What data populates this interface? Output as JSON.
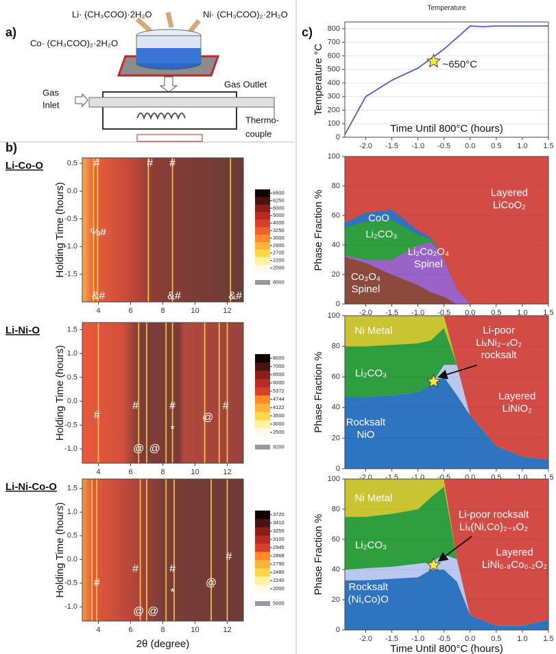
{
  "panel_labels": [
    "a)",
    "b)",
    "c)"
  ],
  "schematic": {
    "precursors": [
      "Li· (CH₃COO)·2H₂O",
      "Ni· (CH₃COO)₂·2H₂O",
      "Co· (CH₃COO)₂·2H₂O"
    ],
    "gas_inlet": [
      "Gas",
      "Inlet"
    ],
    "gas_outlet": "Gas Outlet",
    "thermocouple": [
      "Thermo-",
      "couple"
    ]
  },
  "chart_data": [
    {
      "type": "line",
      "title": "Temperature",
      "ylabel": "Temperature °C",
      "xlabel": "Time Until 800°C (hours)",
      "x": [
        -2.4,
        -2.0,
        -1.5,
        -1.0,
        -0.5,
        0,
        0.25,
        0.5,
        1.0,
        1.5
      ],
      "values": [
        20,
        300,
        420,
        510,
        650,
        820,
        815,
        820,
        820,
        820
      ],
      "color": "#4a5bd6",
      "xlim": [
        -2.4,
        1.5
      ],
      "ylim": [
        0,
        850
      ],
      "xticks": [
        {
          "value": -2,
          "label": "-2.0"
        },
        -1.5,
        {
          "value": -1,
          "label": "-1.0"
        },
        -0.5,
        {
          "value": 0,
          "label": "0.0"
        },
        0.5,
        {
          "value": 1,
          "label": "1.0"
        },
        1.5
      ],
      "yticks": [
        0,
        100,
        200,
        300,
        400,
        500,
        600,
        700,
        800
      ],
      "annotation": {
        "text": "~650°C",
        "x": -0.7,
        "y": 560
      }
    },
    {
      "type": "heatmap",
      "title": "Li-Co-O",
      "ylabel": "Holding Time (hours)",
      "xlim": [
        3,
        13
      ],
      "ylim": [
        -2,
        0.6
      ],
      "xticks": [
        4,
        6,
        8,
        10,
        12
      ],
      "yticks": [
        -1.5,
        {
          "value": -1,
          "label": "-1.0"
        },
        -0.5,
        {
          "value": 0,
          "label": "0.0"
        },
        0.5
      ],
      "peaks": [
        3.7,
        3.95,
        7.1,
        8.6,
        12.2
      ],
      "colorbar": [
        2000,
        2200,
        2700,
        2900,
        3000,
        3250,
        4000,
        5000,
        6000,
        6250,
        6500
      ],
      "colorbar_overflow": 8000,
      "annotations": [
        {
          "text": "#",
          "x": 3.9,
          "y": 0.5
        },
        {
          "text": "#",
          "x": 7.2,
          "y": 0.5
        },
        {
          "text": "#",
          "x": 8.6,
          "y": 0.5
        },
        {
          "text": "%#",
          "x": 4.0,
          "y": -0.75
        },
        {
          "text": "&#",
          "x": 4.0,
          "y": -1.9
        },
        {
          "text": "&#",
          "x": 8.7,
          "y": -1.9
        },
        {
          "text": "&#",
          "x": 12.5,
          "y": -1.9
        }
      ]
    },
    {
      "type": "heatmap",
      "title": "Li-Ni-O",
      "ylabel": "Holding Time (hours)",
      "xlim": [
        3,
        13
      ],
      "ylim": [
        -1.3,
        1.65
      ],
      "xticks": [
        4,
        6,
        8,
        10,
        12
      ],
      "yticks": [
        {
          "value": -1,
          "label": "-1.0"
        },
        -0.5,
        {
          "value": 0,
          "label": "0.0"
        },
        0.5,
        {
          "value": 1,
          "label": "1.0"
        },
        1.5
      ],
      "peaks": [
        4.0,
        6.5,
        7.0,
        8.2,
        8.6,
        10.6,
        11.5,
        12.0
      ],
      "colorbar": [
        2500,
        3000,
        3500,
        4122,
        4744,
        5372,
        6000,
        6500,
        7000,
        8000
      ],
      "colorbar_overflow": 9200,
      "annotations": [
        {
          "text": "#",
          "x": 3.9,
          "y": -0.3
        },
        {
          "text": "#",
          "x": 6.3,
          "y": -0.1
        },
        {
          "text": "#",
          "x": 8.6,
          "y": -0.1
        },
        {
          "text": "#",
          "x": 11.9,
          "y": -0.1
        },
        {
          "text": "*",
          "x": 8.6,
          "y": -0.6
        },
        {
          "text": "@",
          "x": 6.5,
          "y": -1.0
        },
        {
          "text": "@",
          "x": 7.5,
          "y": -1.0
        },
        {
          "text": "@",
          "x": 10.8,
          "y": -0.35
        }
      ]
    },
    {
      "type": "heatmap",
      "title": "Li-Ni-Co-O",
      "ylabel": "Holding Time (hours)",
      "xlabel": "2θ (degree)",
      "xlim": [
        3,
        13
      ],
      "ylim": [
        -1.3,
        1.7
      ],
      "xticks": [
        4,
        6,
        8,
        10,
        12
      ],
      "yticks": [
        {
          "value": -1,
          "label": "-1.0"
        },
        -0.5,
        {
          "value": 0,
          "label": "0.0"
        },
        0.5,
        {
          "value": 1,
          "label": "1.0"
        },
        1.5
      ],
      "peaks": [
        3.6,
        3.9,
        6.6,
        7.0,
        8.2,
        8.7,
        11.0,
        12.0
      ],
      "colorbar": [
        2000,
        2240,
        2480,
        2790,
        2868,
        2945,
        3100,
        3255,
        3410,
        3720
      ],
      "colorbar_overflow": 5000,
      "annotations": [
        {
          "text": "#",
          "x": 3.9,
          "y": -0.5
        },
        {
          "text": "#",
          "x": 6.3,
          "y": -0.2
        },
        {
          "text": "#",
          "x": 8.6,
          "y": -0.2
        },
        {
          "text": "#",
          "x": 12.1,
          "y": 0.05
        },
        {
          "text": "*",
          "x": 8.6,
          "y": -0.7
        },
        {
          "text": "@",
          "x": 6.5,
          "y": -1.1
        },
        {
          "text": "@",
          "x": 7.4,
          "y": -1.1
        },
        {
          "text": "@",
          "x": 11.0,
          "y": -0.5
        }
      ]
    },
    {
      "type": "area",
      "ylabel": "Phase Fraction %",
      "x": [
        -2.4,
        -2.0,
        -1.5,
        -1.0,
        -0.75,
        -0.5,
        -0.25,
        0,
        0.5,
        1.0,
        1.5
      ],
      "xlim": [
        -2.4,
        1.5
      ],
      "ylim": [
        0,
        100
      ],
      "xticks": [
        {
          "value": -2,
          "label": "-2.0"
        },
        -1.5,
        {
          "value": -1,
          "label": "-1.0"
        },
        -0.5,
        {
          "value": 0,
          "label": "0.0"
        },
        0.5,
        {
          "value": 1,
          "label": "1.0"
        },
        1.5
      ],
      "yticks": [
        0,
        20,
        40,
        60,
        80,
        100
      ],
      "series": [
        {
          "name": [
            "Co₃O₄",
            "Spinel"
          ],
          "color": "#8b4a3c",
          "values": [
            32,
            28,
            20,
            13,
            8,
            5,
            0,
            0,
            0,
            0,
            0
          ],
          "label_at": {
            "x": -2.0,
            "y": 14
          }
        },
        {
          "name": [
            "Li₂Co₂O₄",
            "Spinel"
          ],
          "color": "#9a63c8",
          "values": [
            1,
            2,
            10,
            27,
            34,
            25,
            10,
            0,
            0,
            0,
            0
          ],
          "label_at": {
            "x": -0.8,
            "y": 31
          }
        },
        {
          "name": [
            "Li₂CO₃"
          ],
          "color": "#2e9e3e",
          "values": [
            19,
            26,
            27,
            7,
            2,
            0,
            0,
            0,
            0,
            0,
            0
          ],
          "label_at": {
            "x": -1.7,
            "y": 47
          }
        },
        {
          "name": [
            "CoO"
          ],
          "color": "#2f74c0",
          "values": [
            3,
            6,
            7,
            3,
            1,
            0,
            0,
            0,
            0,
            0,
            0
          ],
          "label_at": {
            "x": -1.75,
            "y": 58
          }
        },
        {
          "name": [
            "Layered",
            "LiCoO₂"
          ],
          "color": "#d24b45",
          "values": [
            45,
            38,
            36,
            50,
            55,
            70,
            90,
            100,
            100,
            100,
            100
          ],
          "label_at": {
            "x": 0.75,
            "y": 71
          }
        }
      ]
    },
    {
      "type": "area",
      "ylabel": "Phase Fraction %",
      "x": [
        -2.4,
        -2.0,
        -1.5,
        -1.0,
        -0.75,
        -0.5,
        -0.25,
        0,
        0.5,
        1.0,
        1.5
      ],
      "xlim": [
        -2.4,
        1.5
      ],
      "ylim": [
        0,
        100
      ],
      "xticks": [
        {
          "value": -2,
          "label": "-2.0"
        },
        -1.5,
        {
          "value": -1,
          "label": "-1.0"
        },
        -0.5,
        {
          "value": 0,
          "label": "0.0"
        },
        0.5,
        {
          "value": 1,
          "label": "1.0"
        },
        1.5
      ],
      "yticks": [
        0,
        20,
        40,
        60,
        80,
        100
      ],
      "marker": {
        "x": -0.7,
        "y": 57
      },
      "series": [
        {
          "name": [
            "Rocksalt",
            "NiO"
          ],
          "color": "#2f74c0",
          "values": [
            47,
            47,
            48,
            50,
            55,
            60,
            48,
            35,
            15,
            8,
            6
          ],
          "label_at": {
            "x": -2.0,
            "y": 26
          }
        },
        {
          "name": [
            "Li-poor",
            "LiₓNi₂₋ₓO₂",
            "rocksalt"
          ],
          "color": "#b8c8ee",
          "values": [
            0,
            0,
            0,
            0,
            0,
            8,
            20,
            0,
            0,
            0,
            0
          ],
          "label_at": {
            "x": 0.55,
            "y": 82
          },
          "arrow": true
        },
        {
          "name": [
            "Li₂CO₃"
          ],
          "color": "#2e9e3e",
          "values": [
            33,
            33,
            33,
            32,
            29,
            24,
            0,
            0,
            0,
            0,
            0
          ],
          "label_at": {
            "x": -1.9,
            "y": 62
          }
        },
        {
          "name": [
            "Ni Metal"
          ],
          "color": "#c9c431",
          "values": [
            20,
            20,
            19,
            18,
            16,
            8,
            0,
            0,
            0,
            0,
            0
          ],
          "label_at": {
            "x": -1.85,
            "y": 90
          }
        },
        {
          "name": [
            "Layered",
            "LiNiO₂"
          ],
          "color": "#d24b45",
          "values": [
            0,
            0,
            0,
            0,
            0,
            0,
            32,
            65,
            85,
            92,
            94
          ],
          "label_at": {
            "x": 0.9,
            "y": 43
          }
        }
      ]
    },
    {
      "type": "area",
      "ylabel": "Phase Fraction %",
      "xlabel": "Time Until 800°C (hours)",
      "x": [
        -2.4,
        -2.0,
        -1.5,
        -1.0,
        -0.75,
        -0.5,
        -0.25,
        0,
        0.5,
        1.0,
        1.5
      ],
      "xlim": [
        -2.4,
        1.5
      ],
      "ylim": [
        0,
        100
      ],
      "xticks": [
        {
          "value": -2,
          "label": "-2.0"
        },
        -1.5,
        {
          "value": -1,
          "label": "-1.0"
        },
        -0.5,
        {
          "value": 0,
          "label": "0.0"
        },
        0.5,
        {
          "value": 1,
          "label": "1.0"
        },
        1.5
      ],
      "yticks": [
        0,
        20,
        40,
        60,
        80,
        100
      ],
      "marker": {
        "x": -0.7,
        "y": 43
      },
      "series": [
        {
          "name": [
            "Rocksalt",
            "(Ni,Co)O"
          ],
          "color": "#2f74c0",
          "values": [
            33,
            33,
            34,
            35,
            40,
            40,
            32,
            10,
            3,
            3,
            7
          ],
          "label_at": {
            "x": -1.95,
            "y": 24
          }
        },
        {
          "name": [
            "Li-poor rocksalt",
            "Liₓ(Ni,Co)₂₋ₓO₂"
          ],
          "color": "#b8c8ee",
          "values": [
            7,
            8,
            8,
            9,
            5,
            10,
            15,
            0,
            0,
            0,
            0
          ],
          "label_at": {
            "x": 0.45,
            "y": 72
          },
          "arrow": true
        },
        {
          "name": [
            "Li₂CO₃"
          ],
          "color": "#2e9e3e",
          "values": [
            35,
            34,
            35,
            36,
            43,
            45,
            0,
            0,
            0,
            0,
            0
          ],
          "label_at": {
            "x": -1.9,
            "y": 56
          }
        },
        {
          "name": [
            "Ni Metal"
          ],
          "color": "#c9c431",
          "values": [
            25,
            25,
            23,
            20,
            12,
            5,
            0,
            0,
            0,
            0,
            0
          ],
          "label_at": {
            "x": -1.85,
            "y": 87
          }
        },
        {
          "name": [
            "Layered",
            "LiNi₀.₈Co₀.₂O₂"
          ],
          "color": "#d24b45",
          "values": [
            0,
            0,
            0,
            0,
            0,
            0,
            53,
            90,
            97,
            97,
            93
          ],
          "label_at": {
            "x": 0.85,
            "y": 47
          }
        }
      ]
    }
  ]
}
